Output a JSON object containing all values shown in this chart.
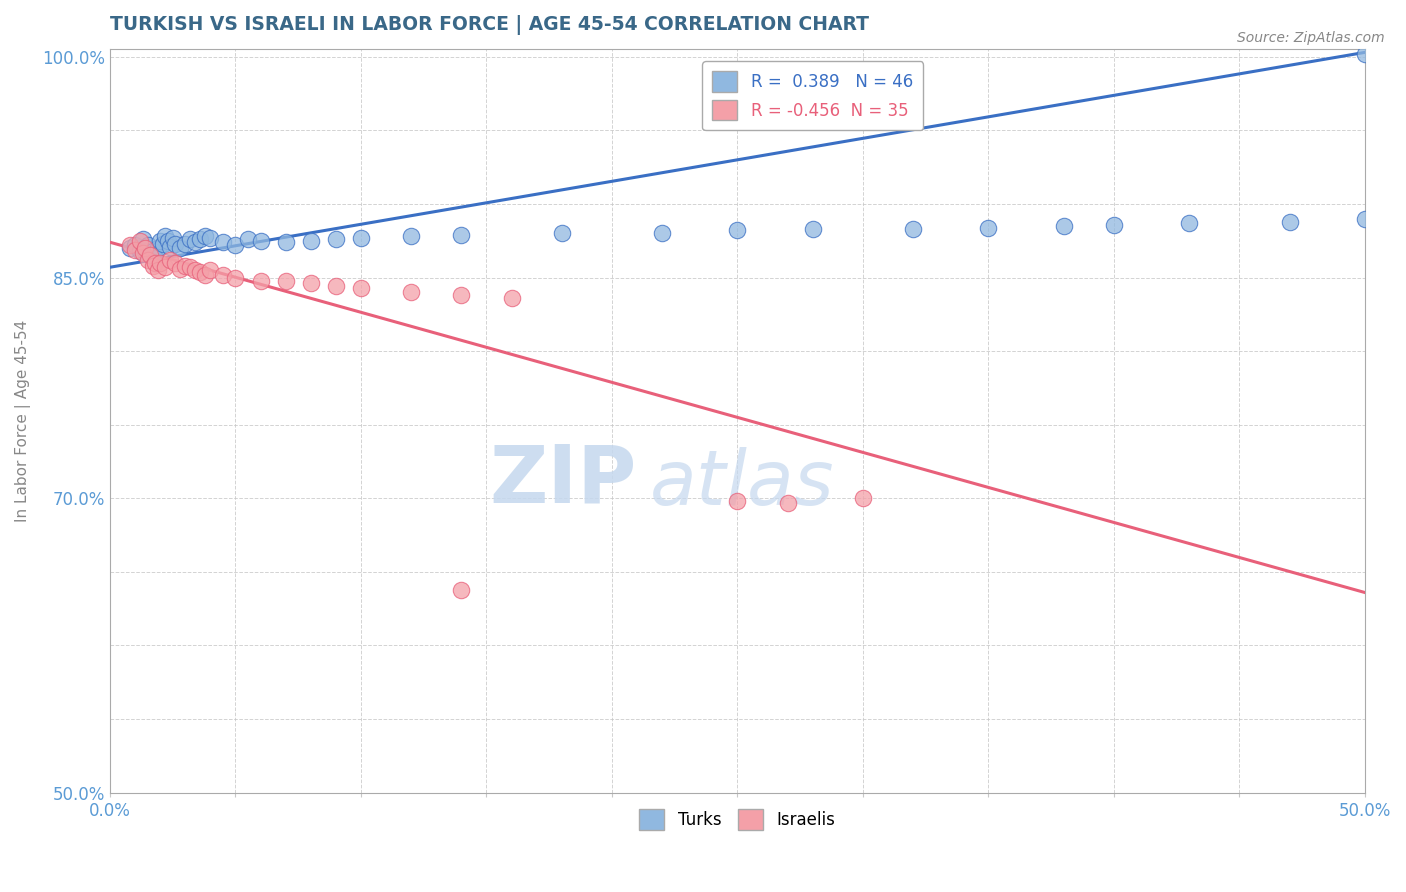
{
  "title": "TURKISH VS ISRAELI IN LABOR FORCE | AGE 45-54 CORRELATION CHART",
  "source_text": "Source: ZipAtlas.com",
  "ylabel": "In Labor Force | Age 45-54",
  "watermark_zip": "ZIP",
  "watermark_atlas": "atlas",
  "xmin": 0.0,
  "xmax": 0.5,
  "ymin": 0.5,
  "ymax": 1.005,
  "blue_R": 0.389,
  "blue_N": 46,
  "pink_R": -0.456,
  "pink_N": 35,
  "blue_color": "#90B8E0",
  "pink_color": "#F4A0A8",
  "blue_line_color": "#3A6FC4",
  "pink_line_color": "#E8607A",
  "title_color": "#3A6888",
  "axis_color": "#5B9BD5",
  "grid_color": "#C8C8C8",
  "blue_line_endpoints": [
    [
      0.0,
      0.857
    ],
    [
      0.5,
      1.003
    ]
  ],
  "pink_line_endpoints": [
    [
      0.0,
      0.874
    ],
    [
      0.5,
      0.636
    ]
  ],
  "blue_dots": [
    [
      0.008,
      0.87
    ],
    [
      0.01,
      0.872
    ],
    [
      0.012,
      0.868
    ],
    [
      0.013,
      0.876
    ],
    [
      0.014,
      0.868
    ],
    [
      0.015,
      0.872
    ],
    [
      0.016,
      0.865
    ],
    [
      0.017,
      0.868
    ],
    [
      0.018,
      0.863
    ],
    [
      0.019,
      0.87
    ],
    [
      0.02,
      0.875
    ],
    [
      0.021,
      0.873
    ],
    [
      0.022,
      0.878
    ],
    [
      0.023,
      0.875
    ],
    [
      0.024,
      0.871
    ],
    [
      0.025,
      0.877
    ],
    [
      0.026,
      0.873
    ],
    [
      0.028,
      0.87
    ],
    [
      0.03,
      0.873
    ],
    [
      0.032,
      0.876
    ],
    [
      0.034,
      0.874
    ],
    [
      0.036,
      0.876
    ],
    [
      0.038,
      0.878
    ],
    [
      0.04,
      0.877
    ],
    [
      0.045,
      0.874
    ],
    [
      0.05,
      0.872
    ],
    [
      0.055,
      0.876
    ],
    [
      0.06,
      0.875
    ],
    [
      0.07,
      0.874
    ],
    [
      0.08,
      0.875
    ],
    [
      0.09,
      0.876
    ],
    [
      0.1,
      0.877
    ],
    [
      0.12,
      0.878
    ],
    [
      0.14,
      0.879
    ],
    [
      0.18,
      0.88
    ],
    [
      0.22,
      0.88
    ],
    [
      0.25,
      0.882
    ],
    [
      0.28,
      0.883
    ],
    [
      0.32,
      0.883
    ],
    [
      0.35,
      0.884
    ],
    [
      0.38,
      0.885
    ],
    [
      0.4,
      0.886
    ],
    [
      0.43,
      0.887
    ],
    [
      0.47,
      0.888
    ],
    [
      0.5,
      1.002
    ],
    [
      0.5,
      0.89
    ]
  ],
  "pink_dots": [
    [
      0.008,
      0.872
    ],
    [
      0.01,
      0.869
    ],
    [
      0.012,
      0.875
    ],
    [
      0.013,
      0.867
    ],
    [
      0.014,
      0.87
    ],
    [
      0.015,
      0.862
    ],
    [
      0.016,
      0.865
    ],
    [
      0.017,
      0.858
    ],
    [
      0.018,
      0.86
    ],
    [
      0.019,
      0.855
    ],
    [
      0.02,
      0.86
    ],
    [
      0.022,
      0.857
    ],
    [
      0.024,
      0.862
    ],
    [
      0.026,
      0.86
    ],
    [
      0.028,
      0.856
    ],
    [
      0.03,
      0.858
    ],
    [
      0.032,
      0.857
    ],
    [
      0.034,
      0.855
    ],
    [
      0.036,
      0.854
    ],
    [
      0.038,
      0.852
    ],
    [
      0.04,
      0.855
    ],
    [
      0.045,
      0.852
    ],
    [
      0.05,
      0.85
    ],
    [
      0.06,
      0.848
    ],
    [
      0.07,
      0.848
    ],
    [
      0.08,
      0.846
    ],
    [
      0.09,
      0.844
    ],
    [
      0.1,
      0.843
    ],
    [
      0.12,
      0.84
    ],
    [
      0.14,
      0.838
    ],
    [
      0.16,
      0.836
    ],
    [
      0.25,
      0.698
    ],
    [
      0.27,
      0.697
    ],
    [
      0.3,
      0.7
    ],
    [
      0.14,
      0.638
    ]
  ]
}
